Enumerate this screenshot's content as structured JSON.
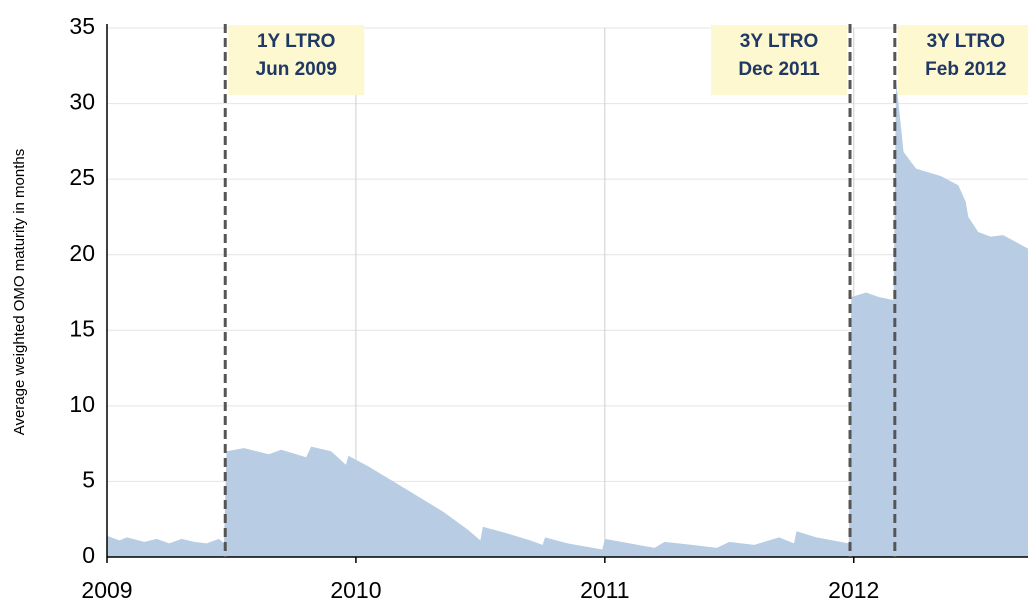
{
  "chart_data": {
    "type": "area",
    "ylabel": "Average weighted  OMO maturity in months",
    "xlim": [
      2009,
      2012.7
    ],
    "xticks": [
      2009,
      2010,
      2011,
      2012
    ],
    "ylim": [
      0,
      35
    ],
    "yticks": [
      0,
      5,
      10,
      15,
      20,
      25,
      30,
      35
    ],
    "grid": true,
    "series": [
      {
        "color": "#b8cce4",
        "x": [
          2009.0,
          2009.05,
          2009.08,
          2009.15,
          2009.2,
          2009.25,
          2009.3,
          2009.35,
          2009.4,
          2009.45,
          2009.47,
          2009.48,
          2009.55,
          2009.65,
          2009.7,
          2009.8,
          2009.82,
          2009.9,
          2009.96,
          2009.97,
          2010.05,
          2010.15,
          2010.25,
          2010.35,
          2010.45,
          2010.5,
          2010.51,
          2010.6,
          2010.7,
          2010.75,
          2010.76,
          2010.85,
          2010.99,
          2011.0,
          2011.1,
          2011.2,
          2011.24,
          2011.35,
          2011.45,
          2011.5,
          2011.6,
          2011.7,
          2011.76,
          2011.77,
          2011.85,
          2011.98,
          2011.99,
          2012.05,
          2012.1,
          2012.16,
          2012.17,
          2012.18,
          2012.2,
          2012.25,
          2012.35,
          2012.42,
          2012.45,
          2012.46,
          2012.5,
          2012.55,
          2012.6,
          2012.7
        ],
        "values": [
          1.4,
          1.1,
          1.3,
          1.0,
          1.2,
          0.9,
          1.2,
          1.0,
          0.9,
          1.2,
          0.9,
          7.0,
          7.2,
          6.8,
          7.1,
          6.6,
          7.3,
          7.0,
          6.1,
          6.7,
          6.0,
          5.0,
          4.0,
          3.0,
          1.8,
          1.1,
          2.0,
          1.6,
          1.1,
          0.8,
          1.3,
          0.9,
          0.5,
          1.2,
          0.9,
          0.6,
          1.0,
          0.8,
          0.6,
          1.0,
          0.8,
          1.3,
          0.9,
          1.7,
          1.3,
          0.9,
          17.2,
          17.5,
          17.2,
          17.0,
          31.5,
          30.0,
          26.8,
          25.7,
          25.2,
          24.6,
          23.5,
          22.5,
          21.5,
          21.2,
          21.3,
          20.4
        ]
      }
    ],
    "annotations": [
      {
        "x": 2009.475,
        "label": [
          "1Y LTRO",
          "Jun 2009"
        ]
      },
      {
        "x": 2011.985,
        "label": [
          "3Y LTRO",
          "Dec 2011"
        ]
      },
      {
        "x": 2012.165,
        "label": [
          "3Y LTRO",
          "Feb 2012"
        ]
      }
    ]
  }
}
